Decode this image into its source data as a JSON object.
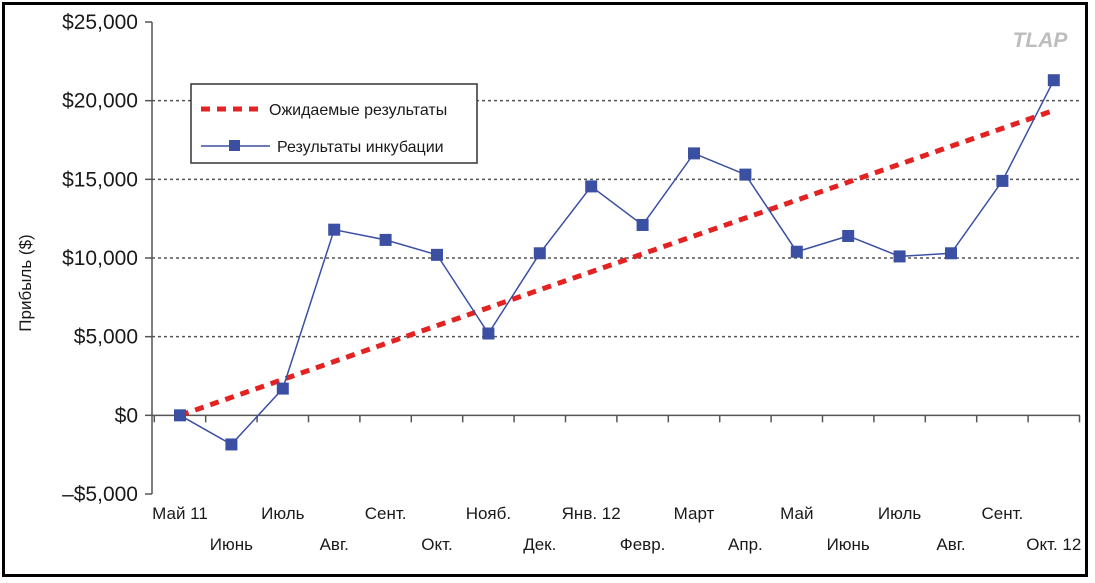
{
  "watermark": "TLAP",
  "colors": {
    "expected": "#e32222",
    "incubation": "#3b4fa3",
    "grid": "#555555",
    "axis": "#555555"
  },
  "chart_data": {
    "type": "line",
    "ylabel": "Прибыль ($)",
    "xlabel": "",
    "ylim": [
      -5000,
      25000
    ],
    "yticks": [
      -5000,
      0,
      5000,
      10000,
      15000,
      20000,
      25000
    ],
    "ytick_labels": [
      "–$5,000",
      "$0",
      "$5,000",
      "$10,000",
      "$15,000",
      "$20,000",
      "$25,000"
    ],
    "gridlines_y": [
      5000,
      10000,
      15000,
      20000
    ],
    "categories": [
      "Май 11",
      "Июнь",
      "Июль",
      "Авг.",
      "Сент.",
      "Окт.",
      "Нояб.",
      "Дек.",
      "Янв. 12",
      "Февр.",
      "Март",
      "Апр.",
      "Май",
      "Июнь",
      "Июль",
      "Авг.",
      "Сент.",
      "Окт. 12"
    ],
    "legend_position": "top-left",
    "series": [
      {
        "name": "Ожидаемые результаты",
        "style": "dashed",
        "values": [
          0,
          1140,
          2280,
          3420,
          4560,
          5700,
          6840,
          7980,
          9120,
          10260,
          11400,
          12540,
          13680,
          14820,
          15960,
          17100,
          18240,
          19380
        ]
      },
      {
        "name": "Результаты инкубации",
        "style": "solid-square-markers",
        "values": [
          0,
          -1850,
          1700,
          11800,
          11150,
          10200,
          5200,
          10300,
          14550,
          12100,
          16650,
          15300,
          10400,
          11400,
          10100,
          10300,
          14900,
          21300
        ]
      }
    ]
  }
}
